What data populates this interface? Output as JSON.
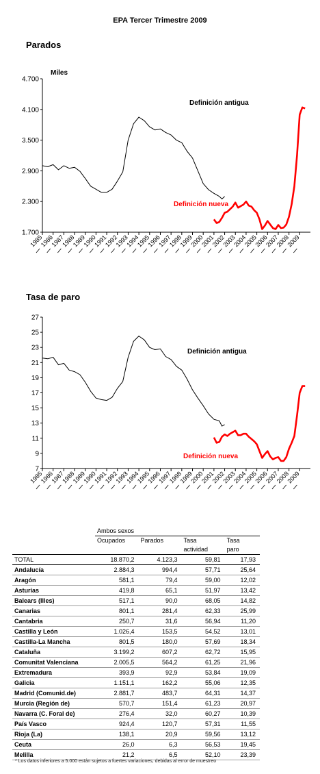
{
  "header": {
    "title": "EPA    Tercer Trimestre 2009"
  },
  "colors": {
    "old_series": "#000000",
    "new_series": "#ff0000"
  },
  "chart_data": [
    {
      "type": "line",
      "title": "Parados",
      "ylabel": "Miles",
      "ylim": [
        1700,
        4700
      ],
      "yticks": [
        "1.700",
        "2.300",
        "2.900",
        "3.500",
        "4.100",
        "4.700"
      ],
      "ytick_values": [
        1700,
        2300,
        2900,
        3500,
        4100,
        4700
      ],
      "xlim": [
        1985.0,
        2010.0
      ],
      "xticks": [
        "1985",
        "1986",
        "1987",
        "1988",
        "1989",
        "1990",
        "1991",
        "1992",
        "1993",
        "1994",
        "1995",
        "1996",
        "1997",
        "1998",
        "1999",
        "2000",
        "2001",
        "2002",
        "2003",
        "2004",
        "2005",
        "2006",
        "2007",
        "2008",
        "2009"
      ],
      "grid": false,
      "series": [
        {
          "name": "Definición antigua",
          "color": "#000000",
          "x": [
            1985.0,
            1985.5,
            1986.0,
            1986.5,
            1987.0,
            1987.5,
            1988.0,
            1988.5,
            1989.0,
            1989.5,
            1990.0,
            1990.5,
            1991.0,
            1991.5,
            1992.0,
            1992.5,
            1993.0,
            1993.5,
            1994.0,
            1994.5,
            1995.0,
            1995.5,
            1996.0,
            1996.5,
            1997.0,
            1997.5,
            1998.0,
            1998.5,
            1999.0,
            1999.5,
            2000.0,
            2000.5,
            2001.0,
            2001.5,
            2001.75,
            2002.0
          ],
          "values": [
            3000,
            2980,
            3020,
            2920,
            3000,
            2950,
            2970,
            2890,
            2750,
            2600,
            2540,
            2480,
            2480,
            2540,
            2700,
            2880,
            3500,
            3820,
            3950,
            3880,
            3760,
            3700,
            3720,
            3650,
            3600,
            3500,
            3450,
            3280,
            3150,
            2900,
            2650,
            2530,
            2460,
            2400,
            2350,
            2400
          ]
        },
        {
          "name": "Definición nueva",
          "color": "#ff0000",
          "x": [
            2001.0,
            2001.25,
            2001.5,
            2001.75,
            2002.0,
            2002.25,
            2002.5,
            2002.75,
            2003.0,
            2003.25,
            2003.5,
            2003.75,
            2004.0,
            2004.25,
            2004.5,
            2004.75,
            2005.0,
            2005.25,
            2005.5,
            2005.75,
            2006.0,
            2006.25,
            2006.5,
            2006.75,
            2007.0,
            2007.25,
            2007.5,
            2007.75,
            2008.0,
            2008.25,
            2008.5,
            2008.75,
            2009.0,
            2009.25,
            2009.5
          ],
          "values": [
            1950,
            1880,
            1900,
            1980,
            2080,
            2100,
            2150,
            2200,
            2280,
            2180,
            2210,
            2240,
            2300,
            2220,
            2200,
            2130,
            2080,
            1950,
            1760,
            1830,
            1920,
            1850,
            1780,
            1760,
            1840,
            1780,
            1790,
            1850,
            2000,
            2250,
            2600,
            3200,
            4000,
            4140,
            4120
          ]
        }
      ]
    },
    {
      "type": "line",
      "title": "Tasa de paro",
      "ylim": [
        7,
        27
      ],
      "yticks": [
        "7",
        "9",
        "11",
        "13",
        "15",
        "17",
        "19",
        "21",
        "23",
        "25",
        "27"
      ],
      "ytick_values": [
        7,
        9,
        11,
        13,
        15,
        17,
        19,
        21,
        23,
        25,
        27
      ],
      "xlim": [
        1985.0,
        2010.0
      ],
      "xticks": [
        "1985",
        "1986",
        "1987",
        "1988",
        "1989",
        "1990",
        "1991",
        "1992",
        "1993",
        "1994",
        "1995",
        "1996",
        "1997",
        "1998",
        "1999",
        "2000",
        "2001",
        "2002",
        "2003",
        "2004",
        "2005",
        "2006",
        "2007",
        "2008",
        "2009"
      ],
      "grid": false,
      "series": [
        {
          "name": "Definición antigua",
          "color": "#000000",
          "x": [
            1985.0,
            1985.5,
            1986.0,
            1986.5,
            1987.0,
            1987.5,
            1988.0,
            1988.5,
            1989.0,
            1989.5,
            1990.0,
            1990.5,
            1991.0,
            1991.5,
            1992.0,
            1992.5,
            1993.0,
            1993.5,
            1994.0,
            1994.5,
            1995.0,
            1995.5,
            1996.0,
            1996.5,
            1997.0,
            1997.5,
            1998.0,
            1998.5,
            1999.0,
            1999.5,
            2000.0,
            2000.5,
            2001.0,
            2001.5,
            2001.75,
            2002.0
          ],
          "values": [
            21.6,
            21.5,
            21.7,
            20.7,
            20.9,
            20.0,
            19.8,
            19.4,
            18.4,
            17.2,
            16.3,
            16.1,
            16.0,
            16.4,
            17.6,
            18.5,
            21.7,
            23.8,
            24.5,
            24.0,
            23.0,
            22.7,
            22.8,
            21.8,
            21.4,
            20.5,
            20.0,
            18.8,
            17.4,
            16.3,
            15.3,
            14.2,
            13.5,
            13.3,
            12.6,
            12.8
          ]
        },
        {
          "name": "Definición nueva",
          "color": "#ff0000",
          "x": [
            2001.0,
            2001.25,
            2001.5,
            2001.75,
            2002.0,
            2002.25,
            2002.5,
            2002.75,
            2003.0,
            2003.25,
            2003.5,
            2003.75,
            2004.0,
            2004.25,
            2004.5,
            2004.75,
            2005.0,
            2005.25,
            2005.5,
            2005.75,
            2006.0,
            2006.25,
            2006.5,
            2006.75,
            2007.0,
            2007.25,
            2007.5,
            2007.75,
            2008.0,
            2008.25,
            2008.5,
            2008.75,
            2009.0,
            2009.25,
            2009.5
          ],
          "values": [
            11.1,
            10.4,
            10.5,
            11.2,
            11.5,
            11.3,
            11.6,
            11.8,
            12.0,
            11.4,
            11.4,
            11.6,
            11.6,
            11.2,
            10.9,
            10.6,
            10.2,
            9.3,
            8.4,
            8.9,
            9.3,
            8.6,
            8.2,
            8.4,
            8.5,
            8.0,
            8.0,
            8.5,
            9.6,
            10.4,
            11.3,
            14.0,
            17.0,
            17.9,
            17.9
          ]
        }
      ]
    }
  ],
  "table": {
    "group_header": "Ambos sexos",
    "columns": [
      {
        "line1": "Ocupados",
        "line2": ""
      },
      {
        "line1": "Parados",
        "line2": ""
      },
      {
        "line1": "Tasa",
        "line2": "actividad"
      },
      {
        "line1": "Tasa",
        "line2": "paro"
      }
    ],
    "total": {
      "name": "TOTAL",
      "values": [
        "18.870,2",
        "4.123,3",
        "59,81",
        "17,93"
      ]
    },
    "rows": [
      {
        "name": "Andalucía",
        "values": [
          "2.884,3",
          "994,4",
          "57,71",
          "25,64"
        ]
      },
      {
        "name": "Aragón",
        "values": [
          "581,1",
          "79,4",
          "59,00",
          "12,02"
        ]
      },
      {
        "name": "Asturias",
        "values": [
          "419,8",
          "65,1",
          "51,97",
          "13,42"
        ]
      },
      {
        "name": "Balears (Illes)",
        "values": [
          "517,1",
          "90,0",
          "68,05",
          "14,82"
        ]
      },
      {
        "name": "Canarias",
        "values": [
          "801,1",
          "281,4",
          "62,33",
          "25,99"
        ]
      },
      {
        "name": "Cantabria",
        "values": [
          "250,7",
          "31,6",
          "56,94",
          "11,20"
        ]
      },
      {
        "name": "Castilla y León",
        "values": [
          "1.026,4",
          "153,5",
          "54,52",
          "13,01"
        ]
      },
      {
        "name": "Castilla-La Mancha",
        "values": [
          "801,5",
          "180,0",
          "57,69",
          "18,34"
        ]
      },
      {
        "name": "Cataluña",
        "values": [
          "3.199,2",
          "607,2",
          "62,72",
          "15,95"
        ]
      },
      {
        "name": "Comunitat Valenciana",
        "values": [
          "2.005,5",
          "564,2",
          "61,25",
          "21,96"
        ]
      },
      {
        "name": "Extremadura",
        "values": [
          "393,9",
          "92,9",
          "53,84",
          "19,09"
        ]
      },
      {
        "name": "Galicia",
        "values": [
          "1.151,1",
          "162,2",
          "55,06",
          "12,35"
        ]
      },
      {
        "name": "Madrid (Comunid.de)",
        "values": [
          "2.881,7",
          "483,7",
          "64,31",
          "14,37"
        ]
      },
      {
        "name": "Murcia (Región de)",
        "values": [
          "570,7",
          "151,4",
          "61,23",
          "20,97"
        ]
      },
      {
        "name": "Navarra (C. Foral de)",
        "values": [
          "276,4",
          "32,0",
          "60,27",
          "10,39"
        ]
      },
      {
        "name": "País Vasco",
        "values": [
          "924,4",
          "120,7",
          "57,31",
          "11,55"
        ]
      },
      {
        "name": "Rioja (La)",
        "values": [
          "138,1",
          "20,9",
          "59,56",
          "13,12"
        ]
      },
      {
        "name": "Ceuta",
        "values": [
          "26,0",
          "6,3",
          "56,53",
          "19,45"
        ]
      },
      {
        "name": "Melilla",
        "values": [
          "21,2",
          "6,5",
          "52,10",
          "23,39"
        ]
      }
    ],
    "footnote": "* Los datos inferiores a 5.000 están sujetos a fuertes variaciones, debidas al error de muestreo"
  }
}
